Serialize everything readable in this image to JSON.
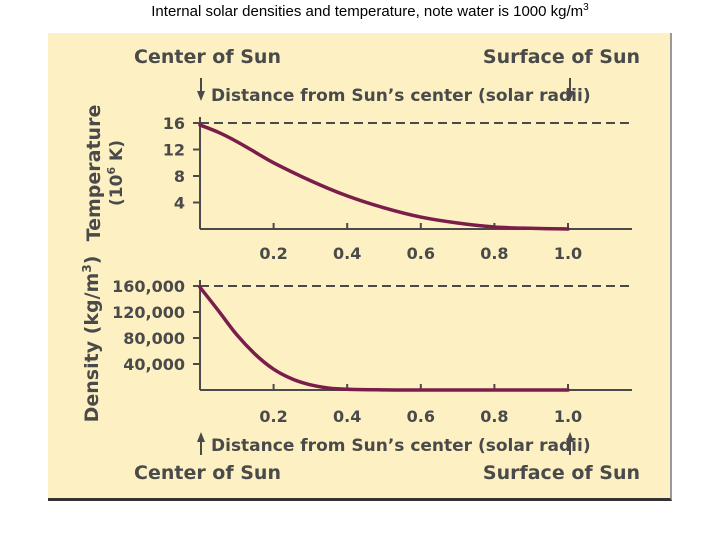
{
  "slide": {
    "title": "Internal  solar densities and temperature, note water is 1000 kg/m",
    "title_sup": "3"
  },
  "chart_data": [
    {
      "type": "line",
      "name": "temperature",
      "title": "",
      "ylabel": "Temperature (10^6 K)",
      "ylabel_main": "Temperature",
      "ylabel_unit": "(10",
      "ylabel_unit_sup": "6",
      "ylabel_unit_end": " K)",
      "xlabel": "Distance from Sun’s center (solar radii)",
      "top_left_label": "Center of Sun",
      "top_right_label": "Surface of Sun",
      "x_ticks": [
        "0.2",
        "0.4",
        "0.6",
        "0.8",
        "1.0"
      ],
      "y_ticks": [
        "16",
        "12",
        "8",
        "4"
      ],
      "xlim": [
        0,
        1.0
      ],
      "ylim": [
        0,
        16
      ],
      "reference_line": 16,
      "x": [
        0,
        0.05,
        0.1,
        0.15,
        0.2,
        0.3,
        0.4,
        0.5,
        0.6,
        0.7,
        0.8,
        0.9,
        1.0
      ],
      "y": [
        15.7,
        14.6,
        13.2,
        11.6,
        10.0,
        7.3,
        5.0,
        3.2,
        1.8,
        0.9,
        0.3,
        0.1,
        0.0
      ]
    },
    {
      "type": "line",
      "name": "density",
      "title": "",
      "ylabel": "Density (kg/m^3)",
      "ylabel_main": "Density (kg/m",
      "ylabel_sup": "3",
      "ylabel_end": ")",
      "xlabel": "Distance from Sun’s center (solar radii)",
      "bottom_left_label": "Center of Sun",
      "bottom_right_label": "Surface of Sun",
      "x_ticks": [
        "0.2",
        "0.4",
        "0.6",
        "0.8",
        "1.0"
      ],
      "y_ticks": [
        "160,000",
        "120,000",
        "80,000",
        "40,000"
      ],
      "xlim": [
        0,
        1.0
      ],
      "ylim": [
        0,
        160000
      ],
      "reference_line": 160000,
      "x": [
        0,
        0.05,
        0.1,
        0.15,
        0.2,
        0.25,
        0.3,
        0.35,
        0.4,
        0.5,
        0.6,
        0.8,
        1.0
      ],
      "y": [
        158000,
        122000,
        85000,
        55000,
        32000,
        17000,
        8000,
        3000,
        1200,
        200,
        0,
        0,
        0
      ]
    }
  ]
}
